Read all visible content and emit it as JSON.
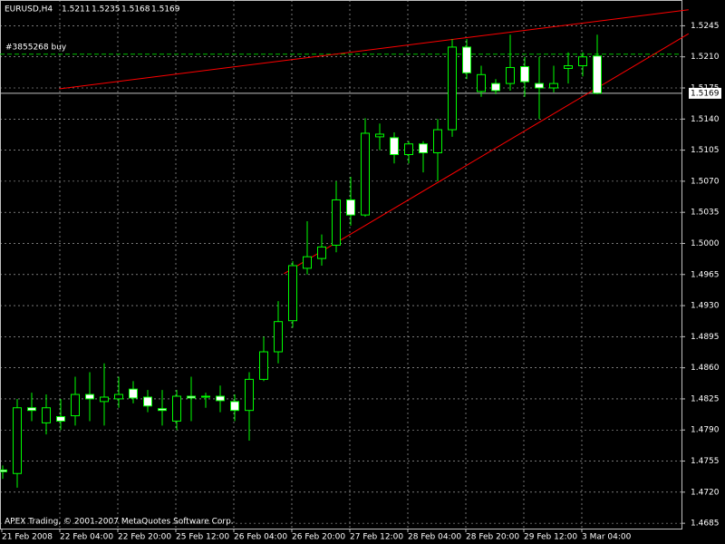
{
  "chart_data": {
    "type": "candlestick",
    "symbol": "EURUSD,H4",
    "copyright": "APEX Trading, © 2001-2007 MetaQuotes Software Corp.",
    "order_label": "#3855268 buy",
    "order_price": 1.5213,
    "up_color": "#000000",
    "down_color": "#ffffff",
    "wick_color": "#00ff00",
    "grid": true,
    "categories": [
      "21 Feb 2008",
      null,
      null,
      null,
      "22 Feb 04:00",
      null,
      null,
      null,
      "22 Feb 20:00",
      null,
      null,
      null,
      "25 Feb 12:00",
      null,
      null,
      null,
      "26 Feb 04:00",
      null,
      null,
      null,
      "26 Feb 20:00",
      null,
      null,
      null,
      "27 Feb 12:00",
      null,
      null,
      null,
      "28 Feb 04:00",
      null,
      null,
      null,
      "28 Feb 20:00",
      null,
      null,
      null,
      "29 Feb 12:00",
      null,
      null,
      null,
      "3 Mar 04:00",
      null
    ],
    "open": [
      1.4745,
      1.4741,
      1.4815,
      1.4798,
      1.4805,
      1.4806,
      1.483,
      1.4822,
      1.4825,
      1.4836,
      1.4827,
      1.4814,
      1.48,
      1.4828,
      1.4828,
      1.4828,
      1.4822,
      1.4812,
      1.4847,
      1.4878,
      1.4913,
      1.4972,
      1.4983,
      1.4998,
      1.5049,
      1.5032,
      1.512,
      1.5119,
      1.51,
      1.5112,
      1.5102,
      1.5128,
      1.5221,
      1.5171,
      1.518,
      1.518,
      1.5199,
      1.518,
      1.5175,
      1.5197,
      1.52,
      1.5211
    ],
    "high": [
      1.475,
      1.4825,
      1.4832,
      1.483,
      1.4825,
      1.485,
      1.4855,
      1.4865,
      1.485,
      1.4845,
      1.4835,
      1.4835,
      1.4835,
      1.485,
      1.4832,
      1.484,
      1.483,
      1.4855,
      1.4895,
      1.4935,
      1.498,
      1.5025,
      1.501,
      1.507,
      1.5075,
      1.5141,
      1.5135,
      1.5125,
      1.5115,
      1.5115,
      1.514,
      1.523,
      1.523,
      1.52,
      1.5185,
      1.5235,
      1.521,
      1.521,
      1.52,
      1.5215,
      1.5215,
      1.5235
    ],
    "low": [
      1.4735,
      1.4725,
      1.48,
      1.4785,
      1.479,
      1.4795,
      1.48,
      1.4795,
      1.4815,
      1.482,
      1.481,
      1.4795,
      1.479,
      1.48,
      1.4815,
      1.481,
      1.48,
      1.4778,
      1.4845,
      1.4865,
      1.4905,
      1.4965,
      1.4975,
      1.499,
      1.502,
      1.503,
      1.5105,
      1.509,
      1.509,
      1.508,
      1.507,
      1.512,
      1.5185,
      1.5165,
      1.5168,
      1.5172,
      1.5165,
      1.514,
      1.517,
      1.518,
      1.5188,
      1.5168
    ],
    "close": [
      1.4743,
      1.4815,
      1.4812,
      1.4815,
      1.48,
      1.483,
      1.4825,
      1.4827,
      1.483,
      1.4826,
      1.4817,
      1.4812,
      1.4828,
      1.4826,
      1.4827,
      1.4823,
      1.4812,
      1.4847,
      1.4878,
      1.4912,
      1.4975,
      1.4985,
      1.4996,
      1.5049,
      1.5032,
      1.5124,
      1.5123,
      1.51,
      1.5112,
      1.5102,
      1.5128,
      1.5221,
      1.5192,
      1.519,
      1.5172,
      1.5198,
      1.5182,
      1.5175,
      1.518,
      1.52,
      1.521,
      1.5169
    ],
    "trendlines": [
      {
        "color": "#ff0000",
        "x": [
          3.9,
          47.3
        ],
        "y": [
          1.5174,
          1.5263
        ]
      },
      {
        "color": "#ff0000",
        "x": [
          19.4,
          47.3
        ],
        "y": [
          1.4966,
          1.5236
        ]
      }
    ],
    "ylim": [
      1.4679,
      1.5274
    ],
    "yticks": [
      1.5245,
      {
        "value": 1.521,
        "label": "1.5210"
      },
      1.5175,
      {
        "value": 1.514,
        "label": "1.5140"
      },
      1.5105,
      {
        "value": 1.507,
        "label": "1.5070"
      },
      1.5035,
      {
        "value": 1.5,
        "label": "1.5000"
      },
      1.4965,
      {
        "value": 1.493,
        "label": "1.4930"
      },
      1.4895,
      {
        "value": 1.486,
        "label": "1.4860"
      },
      1.4825,
      {
        "value": 1.479,
        "label": "1.4790"
      },
      1.4755,
      {
        "value": 1.472,
        "label": "1.4720"
      },
      1.4685
    ]
  }
}
